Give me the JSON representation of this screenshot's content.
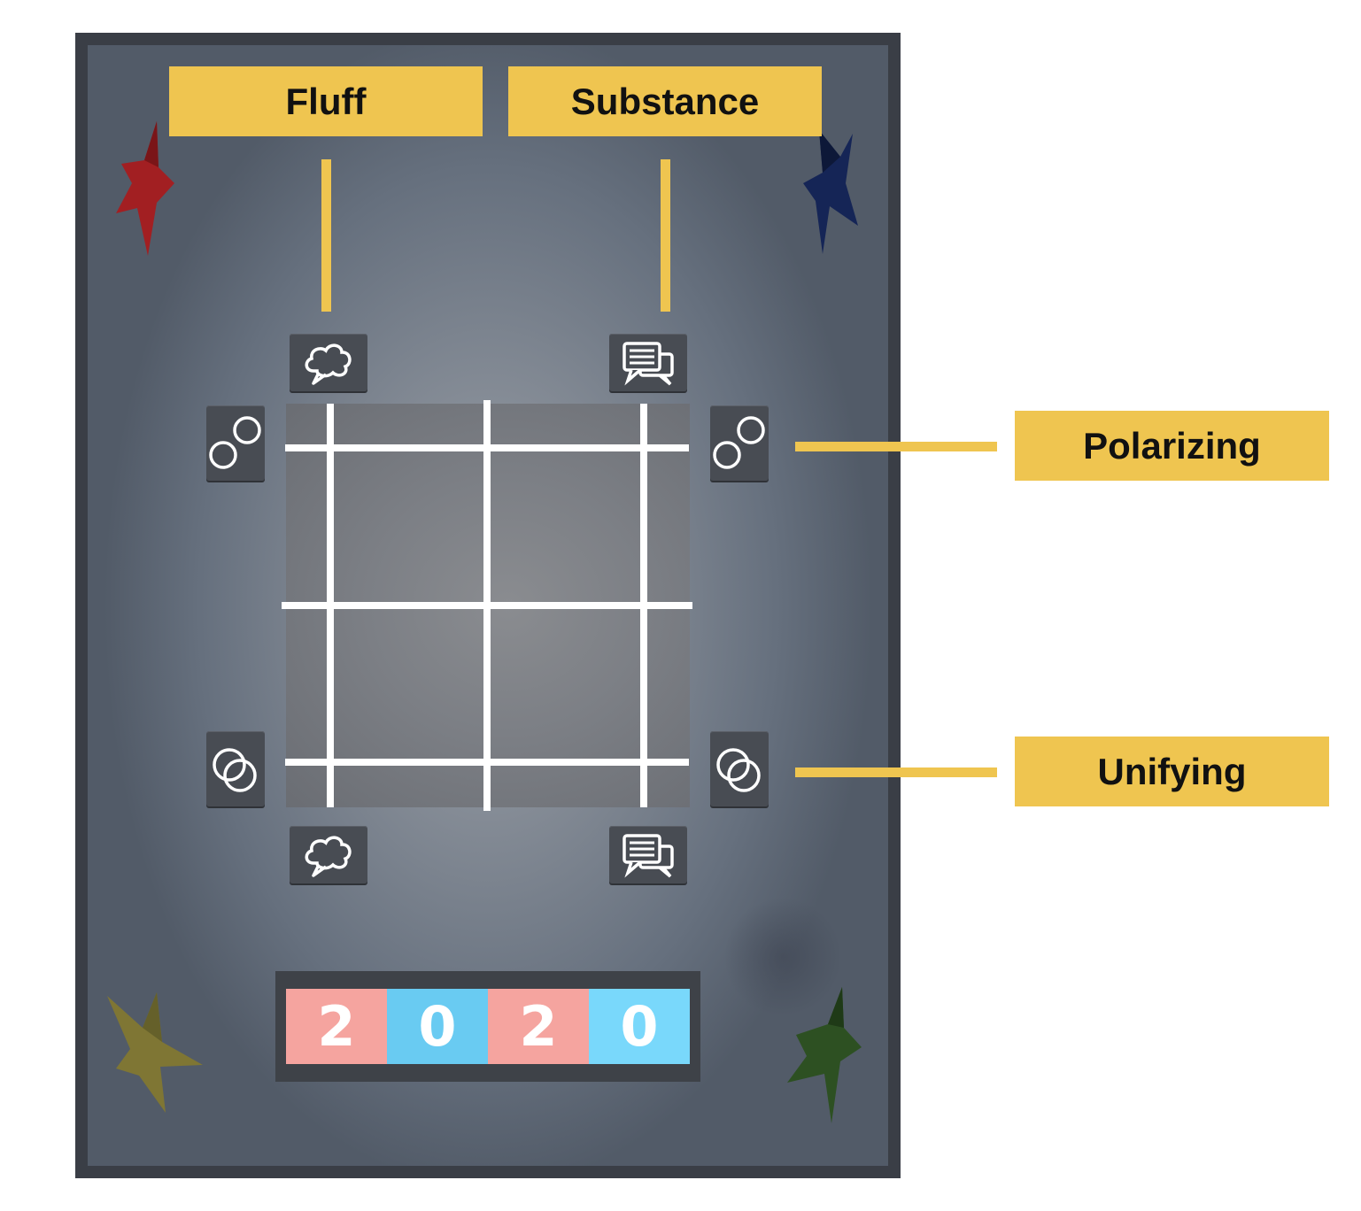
{
  "labels": {
    "top_left": "Fluff",
    "top_right": "Substance",
    "right_top": "Polarizing",
    "right_bottom": "Unifying"
  },
  "icons": {
    "fluff": "thought-bubble-icon",
    "substance": "chat-bubbles-icon",
    "polarizing": "separated-circles-icon",
    "unifying": "overlapping-circles-icon"
  },
  "counter": {
    "digits": [
      "2",
      "0",
      "2",
      "0"
    ],
    "colors": [
      "#f5a49f",
      "#69cbf2",
      "#f5a49f",
      "#79d8fb"
    ]
  },
  "colors": {
    "label_bg": "#efc550",
    "board_frame": "#3a3e46",
    "star_red": "#a21f22",
    "star_blue": "#152556",
    "star_yellow": "#7f7634",
    "star_green": "#2d5022"
  }
}
